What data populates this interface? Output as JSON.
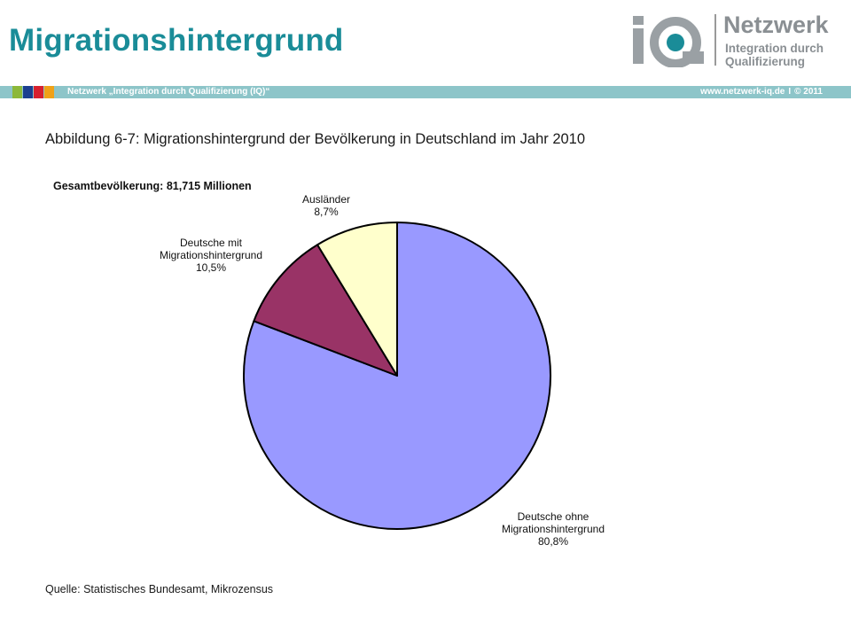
{
  "header": {
    "title": "Migrationshintergrund",
    "logo": {
      "brand": "Netzwerk",
      "sub_line1": "Integration durch",
      "sub_line2": "Qualifizierung",
      "icon": "iq-logo-icon"
    },
    "bar_left": "Netzwerk „Integration durch Qualifizierung (IQ)“",
    "bar_right_url": "www.netzwerk-iq.de",
    "bar_right_sep": "I",
    "bar_right_year": "© 2011",
    "bar_square_colors": [
      "#8cb83a",
      "#1c3f8f",
      "#d7202f",
      "#f0a117"
    ],
    "bar_color": "#8dc5c9",
    "title_color": "#1a8c98"
  },
  "figure": {
    "title": "Abbildung 6-7: Migrationshintergrund der Bevölkerung in Deutschland im Jahr 2010",
    "total_label": "Gesamtbevölkerung: 81,715 Millionen",
    "source": "Quelle: Statistisches Bundesamt, Mikrozensus"
  },
  "chart_data": {
    "type": "pie",
    "title": "Abbildung 6-7: Migrationshintergrund der Bevölkerung in Deutschland im Jahr 2010",
    "unit": "%",
    "start_angle_deg": 0,
    "direction": "clockwise",
    "slices": [
      {
        "label_lines": [
          "Deutsche ohne",
          "Migrationshintergrund"
        ],
        "value": 80.8,
        "value_label": "80,8%",
        "color": "#9999ff",
        "label_pos": "bottom-right"
      },
      {
        "label_lines": [
          "Deutsche mit",
          "Migrationshintergrund"
        ],
        "value": 10.5,
        "value_label": "10,5%",
        "color": "#993366",
        "label_pos": "top-left"
      },
      {
        "label_lines": [
          "Ausländer"
        ],
        "value": 8.7,
        "value_label": "8,7%",
        "color": "#ffffcc",
        "label_pos": "top"
      }
    ]
  }
}
